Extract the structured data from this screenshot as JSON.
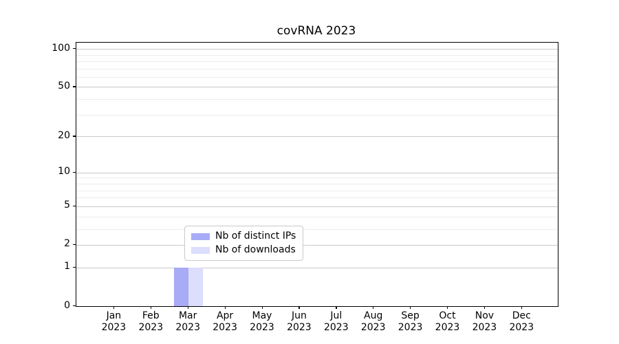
{
  "chart_data": {
    "type": "bar",
    "title": "covRNA 2023",
    "xlabel": "",
    "ylabel": "",
    "categories": [
      "Jan",
      "Feb",
      "Mar",
      "Apr",
      "May",
      "Jun",
      "Jul",
      "Aug",
      "Sep",
      "Oct",
      "Nov",
      "Dec"
    ],
    "category_year": "2023",
    "series": [
      {
        "name": "Nb of distinct IPs",
        "color": "#a8abf5",
        "values": [
          0,
          0,
          1,
          0,
          0,
          0,
          0,
          0,
          0,
          0,
          0,
          0
        ]
      },
      {
        "name": "Nb of downloads",
        "color": "#dcdefb",
        "values": [
          0,
          0,
          1,
          0,
          0,
          0,
          0,
          0,
          0,
          0,
          0,
          0
        ]
      }
    ],
    "y_scale": "log1p",
    "ylim": [
      0,
      112
    ],
    "y_major_ticks": [
      0,
      1,
      2,
      5,
      10,
      20,
      50,
      100
    ],
    "y_minor_ticks": [
      3,
      4,
      6,
      7,
      8,
      9,
      30,
      40,
      60,
      70,
      80,
      90
    ],
    "grid": "horizontal",
    "legend_position": "lower-center-inside",
    "colors": {
      "grid_major": "#c9c9c9",
      "grid_minor": "#ededed",
      "axis": "#000000",
      "legend_border": "#c9c9c9",
      "background": "#ffffff"
    }
  }
}
